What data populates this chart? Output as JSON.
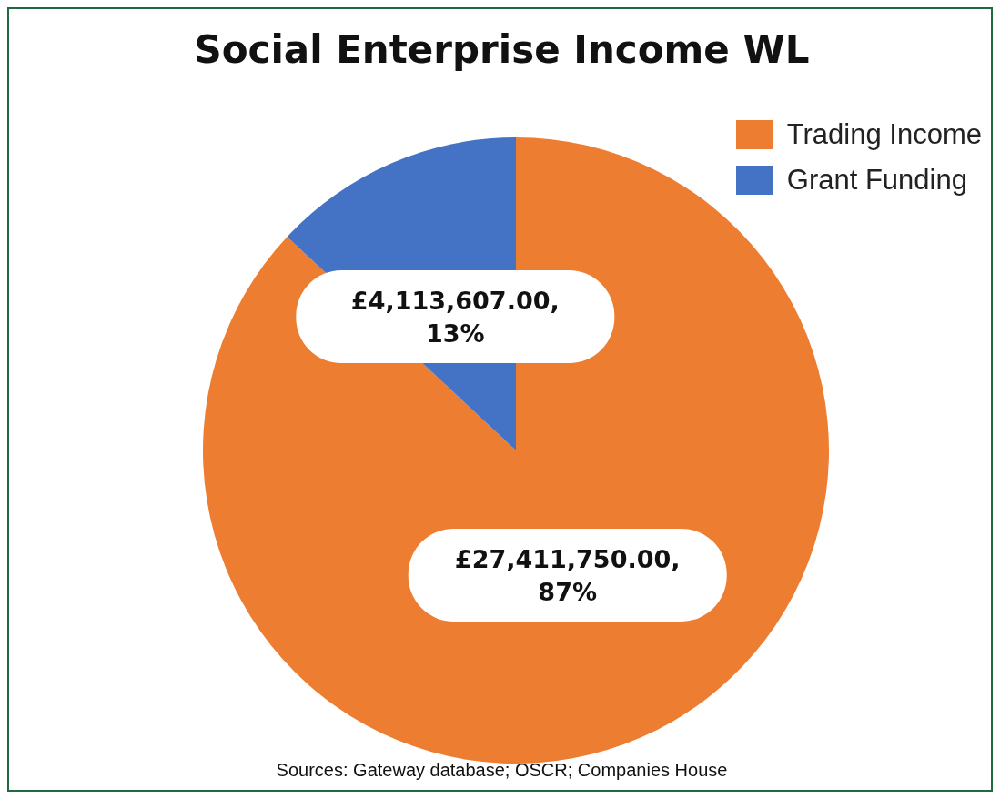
{
  "chart_data": {
    "type": "pie",
    "title": "Social Enterprise Income WL",
    "categories": [
      "Trading Income",
      "Grant Funding"
    ],
    "values": [
      27411750,
      4113607
    ],
    "colors": [
      "#ed7d31",
      "#4472c4"
    ],
    "value_labels": [
      "£27,411,750.00, 87%",
      "£4,113,607.00, 13%"
    ],
    "legend": "top right",
    "annotations": [
      "Sources: Gateway database; OSCR; Companies House"
    ]
  }
}
